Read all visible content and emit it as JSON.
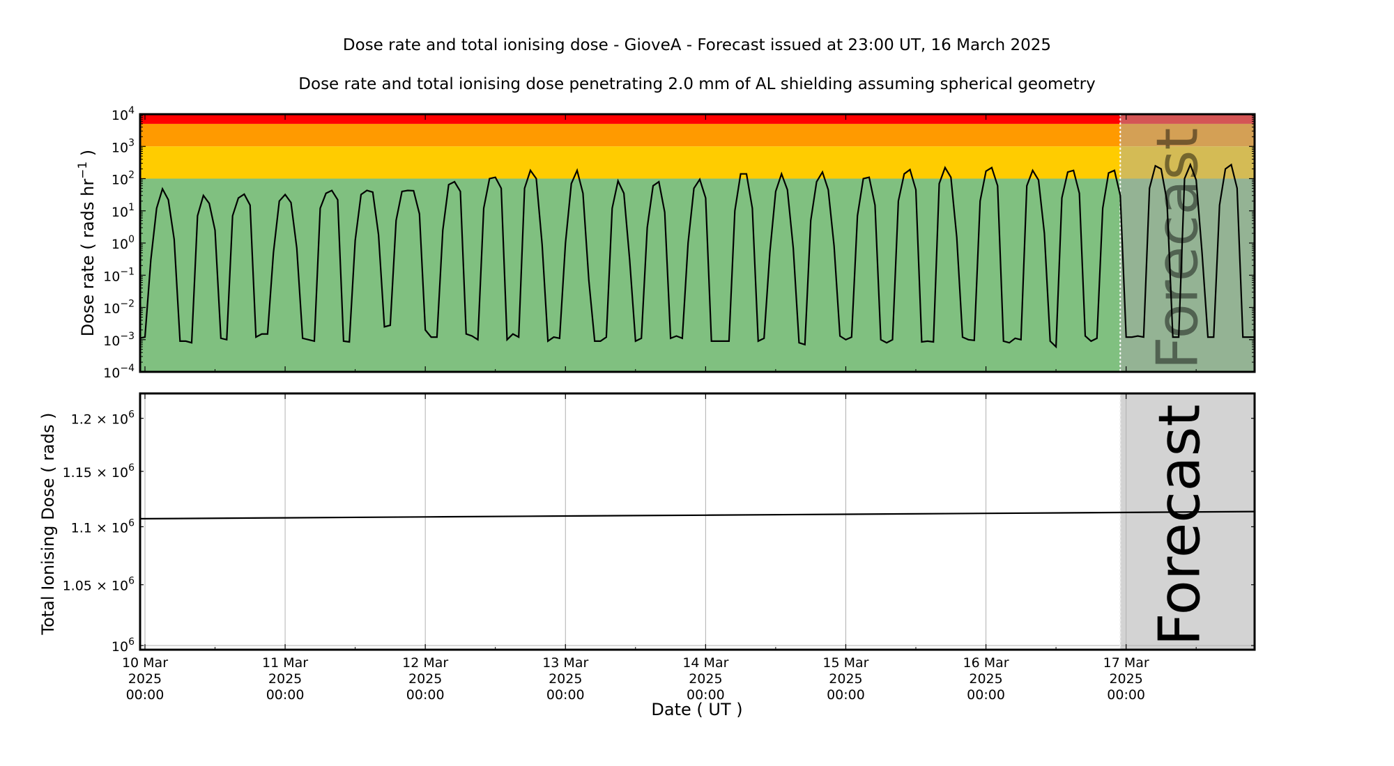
{
  "titles": {
    "main": "Dose rate and total ionising dose - GioveA - Forecast issued at 23:00 UT, 16 March 2025",
    "sub": "Dose rate and total ionising dose penetrating 2.0 mm of AL shielding assuming spherical geometry"
  },
  "chart_data": [
    {
      "type": "line",
      "ylabel": "Dose rate ( rads hr",
      "ylabel_sup": "−1",
      "ylabel_end": " )",
      "yscale": "log",
      "ylim": [
        0.0001,
        10000
      ],
      "xlim": [
        "2025-03-09T23:10",
        "2025-03-17T22:00"
      ],
      "grid": false,
      "forecast_start": "2025-03-16T23:00",
      "forecast_label": "Forecast",
      "yticks": [
        {
          "value": 10000,
          "base": "10",
          "exp": "4"
        },
        {
          "value": 1000,
          "base": "10",
          "exp": "3"
        },
        {
          "value": 100,
          "base": "10",
          "exp": "2"
        },
        {
          "value": 10,
          "base": "10",
          "exp": "1"
        },
        {
          "value": 1,
          "base": "10",
          "exp": "0"
        },
        {
          "value": 0.1,
          "base": "10",
          "exp": "−1"
        },
        {
          "value": 0.01,
          "base": "10",
          "exp": "−2"
        },
        {
          "value": 0.001,
          "base": "10",
          "exp": "−3"
        },
        {
          "value": 0.0001,
          "base": "10",
          "exp": "−4"
        }
      ],
      "bands": [
        {
          "from": 5000,
          "to": 10000,
          "color": "#ff0000",
          "forecast_color": "#d45555"
        },
        {
          "from": 1000,
          "to": 5000,
          "color": "#ff9a00",
          "forecast_color": "#d4a055"
        },
        {
          "from": 100,
          "to": 1000,
          "color": "#ffcc00",
          "forecast_color": "#d4bb55"
        },
        {
          "from": 0.0001,
          "to": 100,
          "color": "#80c080",
          "forecast_color": "#94b394"
        }
      ],
      "series_hourly": [
        {
          "date": "2025-03-09",
          "start": "23:00",
          "values": [
            0.0011
          ]
        },
        {
          "date": "2025-03-10",
          "start": "00:00",
          "values": [
            0.0012,
            0.3,
            12,
            48,
            22,
            1.3,
            0.0009,
            0.0009,
            0.0008,
            7,
            30,
            17,
            2.5,
            0.0011,
            0.001,
            7,
            25,
            33,
            15,
            0.0012,
            0.0015,
            0.0015,
            0.5,
            20
          ]
        },
        {
          "date": "2025-03-11",
          "start": "00:00",
          "values": [
            32,
            18,
            0.7,
            0.0011,
            0.001,
            0.0009,
            12,
            35,
            43,
            22,
            0.0009,
            0.00085,
            1.2,
            32,
            43,
            38,
            1.8,
            0.0025,
            0.0028,
            5,
            40,
            43,
            42,
            8
          ]
        },
        {
          "date": "2025-03-12",
          "start": "00:00",
          "values": [
            0.002,
            0.0012,
            0.0012,
            2.5,
            65,
            80,
            40,
            0.0015,
            0.0013,
            0.001,
            12,
            100,
            110,
            50,
            0.001,
            0.0015,
            0.0012,
            50,
            180,
            100,
            0.9,
            0.0009,
            0.0012,
            0.0011
          ]
        },
        {
          "date": "2025-03-13",
          "start": "00:00",
          "values": [
            1,
            70,
            180,
            35,
            0.07,
            0.0009,
            0.0009,
            0.0012,
            12,
            85,
            35,
            0.3,
            0.0009,
            0.0011,
            3,
            60,
            80,
            9,
            0.0011,
            0.0013,
            0.0011,
            1,
            50,
            95
          ]
        },
        {
          "date": "2025-03-14",
          "start": "00:00",
          "values": [
            25,
            0.0009,
            0.0009,
            0.0009,
            0.0009,
            10,
            140,
            140,
            12,
            0.0009,
            0.0011,
            0.5,
            40,
            140,
            45,
            0.7,
            0.0008,
            0.0007,
            5,
            80,
            160,
            45,
            0.8,
            0.0013
          ]
        },
        {
          "date": "2025-03-15",
          "start": "00:00",
          "values": [
            0.001,
            0.0012,
            7,
            100,
            110,
            15,
            0.001,
            0.0008,
            0.001,
            20,
            140,
            190,
            45,
            0.00085,
            0.0009,
            0.00085,
            70,
            220,
            110,
            1.5,
            0.0012,
            0.001,
            0.00095,
            20
          ]
        },
        {
          "date": "2025-03-16",
          "start": "00:00",
          "values": [
            170,
            220,
            60,
            0.0009,
            0.0008,
            0.0011,
            0.001,
            60,
            180,
            90,
            2,
            0.0009,
            0.0006,
            25,
            160,
            180,
            35,
            0.0013,
            0.0009,
            0.0011,
            12,
            150,
            180,
            30
          ]
        },
        {
          "date": "2025-03-17",
          "start": "00:00",
          "values": [
            0.0012,
            0.0012,
            0.0013,
            0.0012,
            50,
            250,
            200,
            20,
            0.0012,
            0.0012,
            100,
            270,
            90,
            0.5,
            0.0012,
            0.0012,
            15,
            200,
            270,
            50,
            0.0012,
            0.0012,
            0.0012
          ]
        }
      ]
    },
    {
      "type": "line",
      "ylabel": "Total Ionising Dose ( rads )",
      "xlabel": "Date ( UT )",
      "yscale": "log",
      "ylim": [
        996650,
        1224200
      ],
      "xlim": [
        "2025-03-09T23:10",
        "2025-03-17T22:00"
      ],
      "grid": true,
      "forecast_start": "2025-03-16T23:00",
      "forecast_label": "Forecast",
      "yticks": [
        {
          "value": 1200000,
          "mant": "1.2 × 10",
          "exp": "6"
        },
        {
          "value": 1150000,
          "mant": "1.15 × 10",
          "exp": "6"
        },
        {
          "value": 1100000,
          "mant": "1.1 × 10",
          "exp": "6"
        },
        {
          "value": 1050000,
          "mant": "1.05 × 10",
          "exp": "6"
        },
        {
          "value": 1000000,
          "mant": "10",
          "exp": "6"
        }
      ],
      "points": [
        [
          "2025-03-09T23:00",
          1107100
        ],
        [
          "2025-03-10T00:00",
          1107100
        ],
        [
          "2025-03-11T00:00",
          1107900
        ],
        [
          "2025-03-12T00:00",
          1108700
        ],
        [
          "2025-03-13T00:00",
          1109500
        ],
        [
          "2025-03-14T00:00",
          1110300
        ],
        [
          "2025-03-15T00:00",
          1111100
        ],
        [
          "2025-03-16T00:00",
          1111900
        ],
        [
          "2025-03-17T00:00",
          1112700
        ],
        [
          "2025-03-17T22:00",
          1113500
        ]
      ]
    }
  ],
  "xticks": [
    {
      "date": "2025-03-10T00:00",
      "day": "10 Mar",
      "year": "2025",
      "time": "00:00"
    },
    {
      "date": "2025-03-11T00:00",
      "day": "11 Mar",
      "year": "2025",
      "time": "00:00"
    },
    {
      "date": "2025-03-12T00:00",
      "day": "12 Mar",
      "year": "2025",
      "time": "00:00"
    },
    {
      "date": "2025-03-13T00:00",
      "day": "13 Mar",
      "year": "2025",
      "time": "00:00"
    },
    {
      "date": "2025-03-14T00:00",
      "day": "14 Mar",
      "year": "2025",
      "time": "00:00"
    },
    {
      "date": "2025-03-15T00:00",
      "day": "15 Mar",
      "year": "2025",
      "time": "00:00"
    },
    {
      "date": "2025-03-16T00:00",
      "day": "16 Mar",
      "year": "2025",
      "time": "00:00"
    },
    {
      "date": "2025-03-17T00:00",
      "day": "17 Mar",
      "year": "2025",
      "time": "00:00"
    }
  ],
  "colors": {
    "line": "#000000",
    "forecast_bg": "#d3d3d3",
    "forecast_text": "#a9a9a9",
    "forecast_divider": "#ffffff",
    "grid": "#b0b0b0"
  }
}
